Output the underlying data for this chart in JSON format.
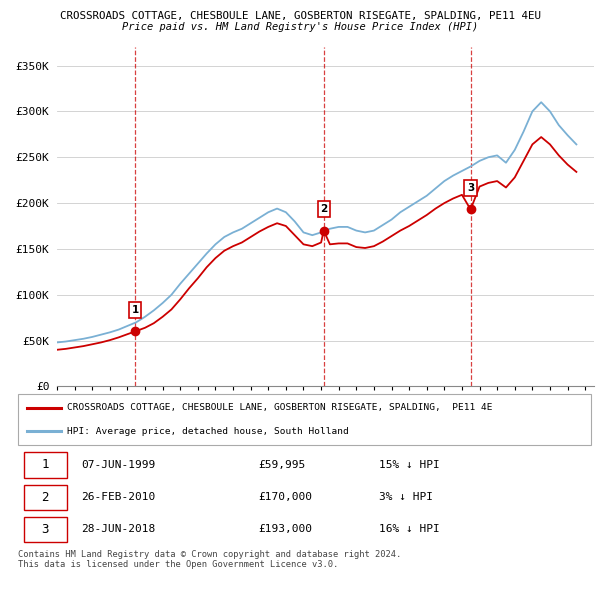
{
  "title1": "CROSSROADS COTTAGE, CHESBOULE LANE, GOSBERTON RISEGATE, SPALDING, PE11 4EU",
  "title2": "Price paid vs. HM Land Registry's House Price Index (HPI)",
  "ylabel_ticks": [
    "£0",
    "£50K",
    "£100K",
    "£150K",
    "£200K",
    "£250K",
    "£300K",
    "£350K"
  ],
  "ytick_values": [
    0,
    50000,
    100000,
    150000,
    200000,
    250000,
    300000,
    350000
  ],
  "ylim": [
    0,
    370000
  ],
  "xlim_start": 1995.0,
  "xlim_end": 2025.5,
  "sale_dates": [
    1999.44,
    2010.15,
    2018.49
  ],
  "sale_prices": [
    59995,
    170000,
    193000
  ],
  "sale_labels": [
    "1",
    "2",
    "3"
  ],
  "sale_date_labels": [
    "07-JUN-1999",
    "26-FEB-2010",
    "28-JUN-2018"
  ],
  "sale_price_labels": [
    "£59,995",
    "£170,000",
    "£193,000"
  ],
  "sale_hpi_labels": [
    "15% ↓ HPI",
    "3% ↓ HPI",
    "16% ↓ HPI"
  ],
  "legend_line1": "CROSSROADS COTTAGE, CHESBOULE LANE, GOSBERTON RISEGATE, SPALDING,  PE11 4E",
  "legend_line2": "HPI: Average price, detached house, South Holland",
  "footer": "Contains HM Land Registry data © Crown copyright and database right 2024.\nThis data is licensed under the Open Government Licence v3.0.",
  "line_color_red": "#cc0000",
  "line_color_blue": "#7ab0d4",
  "dashed_vline_color": "#cc0000",
  "grid_color": "#cccccc",
  "hpi_x": [
    1995.0,
    1995.5,
    1996.0,
    1996.5,
    1997.0,
    1997.5,
    1998.0,
    1998.5,
    1999.0,
    1999.5,
    2000.0,
    2000.5,
    2001.0,
    2001.5,
    2002.0,
    2002.5,
    2003.0,
    2003.5,
    2004.0,
    2004.5,
    2005.0,
    2005.5,
    2006.0,
    2006.5,
    2007.0,
    2007.5,
    2008.0,
    2008.5,
    2009.0,
    2009.5,
    2010.0,
    2010.5,
    2011.0,
    2011.5,
    2012.0,
    2012.5,
    2013.0,
    2013.5,
    2014.0,
    2014.5,
    2015.0,
    2015.5,
    2016.0,
    2016.5,
    2017.0,
    2017.5,
    2018.0,
    2018.5,
    2019.0,
    2019.5,
    2020.0,
    2020.5,
    2021.0,
    2021.5,
    2022.0,
    2022.5,
    2023.0,
    2023.5,
    2024.0,
    2024.5
  ],
  "hpi_y": [
    48000,
    49000,
    50500,
    52000,
    54000,
    56500,
    59000,
    62000,
    66000,
    70000,
    76000,
    83000,
    91000,
    100000,
    112000,
    123000,
    134000,
    145000,
    155000,
    163000,
    168000,
    172000,
    178000,
    184000,
    190000,
    194000,
    190000,
    180000,
    168000,
    165000,
    168000,
    172000,
    174000,
    174000,
    170000,
    168000,
    170000,
    176000,
    182000,
    190000,
    196000,
    202000,
    208000,
    216000,
    224000,
    230000,
    235000,
    240000,
    246000,
    250000,
    252000,
    244000,
    258000,
    278000,
    300000,
    310000,
    300000,
    285000,
    274000,
    264000
  ],
  "price_x": [
    1995.0,
    1995.5,
    1996.0,
    1996.5,
    1997.0,
    1997.5,
    1998.0,
    1998.5,
    1999.0,
    1999.44,
    2000.0,
    2000.5,
    2001.0,
    2001.5,
    2002.0,
    2002.5,
    2003.0,
    2003.5,
    2004.0,
    2004.5,
    2005.0,
    2005.5,
    2006.0,
    2006.5,
    2007.0,
    2007.5,
    2008.0,
    2008.5,
    2009.0,
    2009.5,
    2010.0,
    2010.15,
    2010.5,
    2011.0,
    2011.5,
    2012.0,
    2012.5,
    2013.0,
    2013.5,
    2014.0,
    2014.5,
    2015.0,
    2015.5,
    2016.0,
    2016.5,
    2017.0,
    2017.5,
    2018.0,
    2018.49,
    2019.0,
    2019.5,
    2020.0,
    2020.5,
    2021.0,
    2021.5,
    2022.0,
    2022.5,
    2023.0,
    2023.5,
    2024.0,
    2024.5
  ],
  "price_y": [
    40000,
    41000,
    42500,
    44000,
    46000,
    48000,
    50500,
    53500,
    57000,
    59995,
    64000,
    69000,
    76000,
    84000,
    95000,
    107000,
    118000,
    130000,
    140000,
    148000,
    153000,
    157000,
    163000,
    169000,
    174000,
    178000,
    175000,
    165000,
    155000,
    153000,
    157000,
    170000,
    155000,
    156000,
    156000,
    152000,
    151000,
    153000,
    158000,
    164000,
    170000,
    175000,
    181000,
    187000,
    194000,
    200000,
    205000,
    209000,
    193000,
    218000,
    222000,
    224000,
    217000,
    228000,
    246000,
    264000,
    272000,
    264000,
    252000,
    242000,
    234000
  ]
}
